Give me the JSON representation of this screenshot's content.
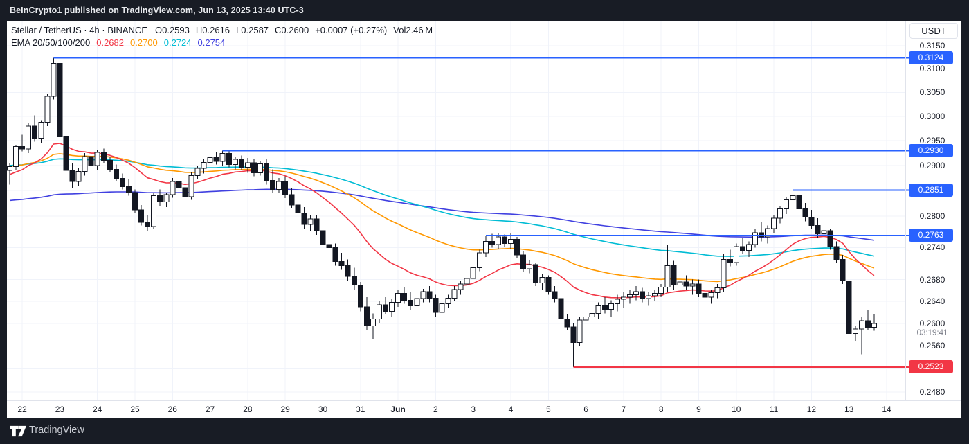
{
  "topbar": {
    "text": "BeInCrypto1 published on TradingView.com, Jun 13, 2025 13:40 UTC-3"
  },
  "header": {
    "title": "Stellar / TetherUS · 4h · BINANCE",
    "open": "O0.2593",
    "high": "H0.2616",
    "low": "L0.2587",
    "close": "C0.2600",
    "change": "+0.0007 (+0.27%)",
    "volume": "Vol2.46 M"
  },
  "axis": {
    "currency_button": "USDT",
    "countdown": "03:19:41"
  },
  "footer": {
    "brand": "TradingView"
  },
  "chart_data": {
    "type": "candlestick",
    "symbol": "Stellar / TetherUS",
    "interval": "4h",
    "exchange": "BINANCE",
    "last_bar": {
      "open": 0.2593,
      "high": 0.2616,
      "low": 0.2587,
      "close": 0.26,
      "change": 0.0007,
      "change_pct": 0.27,
      "volume": "2.46M"
    },
    "scale": "log",
    "y_range_visible": [
      0.2465,
      0.3205
    ],
    "x_map": {
      "x0": 4,
      "dx": 9.05
    },
    "y_map": {
      "p_ref": 0.315,
      "y_ref": 36,
      "k": 2090
    },
    "colors": {
      "grid": "#f0f3fa",
      "candle": "#131722",
      "up_fill": "#ffffff",
      "blue": "#2962FF",
      "red": "#F23645"
    },
    "ema": {
      "label": "EMA 20/50/100/200",
      "periods": [
        20,
        50,
        100,
        200
      ],
      "seeds": [
        0.288,
        0.2898,
        0.29,
        0.283
      ],
      "colors": [
        "#F23645",
        "#FF9800",
        "#00BCD4",
        "#4040E0"
      ],
      "values": [
        "0.2682",
        "0.2700",
        "0.2724",
        "0.2754"
      ]
    },
    "rays": [
      {
        "label": "0.3124",
        "price": 0.3124,
        "i": 7,
        "color": "#2962FF"
      },
      {
        "label": "0.2930",
        "price": 0.293,
        "i": 34,
        "color": "#2962FF"
      },
      {
        "label": "0.2851",
        "price": 0.2851,
        "i": 125,
        "color": "#2962FF"
      },
      {
        "label": "0.2763",
        "price": 0.2763,
        "i": 76,
        "color": "#2962FF"
      },
      {
        "label": "0.2523",
        "price": 0.2523,
        "i": 90,
        "color": "#F23645"
      }
    ],
    "countdown_price": 0.26,
    "y_ticks": [
      {
        "t": "0.3150",
        "p": 0.315
      },
      {
        "t": "0.3100",
        "p": 0.31
      },
      {
        "t": "0.3050",
        "p": 0.305
      },
      {
        "t": "0.3000",
        "p": 0.3
      },
      {
        "t": "0.2950",
        "p": 0.295
      },
      {
        "t": "0.2900",
        "p": 0.29
      },
      {
        "t": "0.2800",
        "p": 0.28
      },
      {
        "t": "0.2740",
        "p": 0.274
      },
      {
        "t": "0.2680",
        "p": 0.268
      },
      {
        "t": "0.2640",
        "p": 0.264
      },
      {
        "t": "0.2600",
        "p": 0.26
      },
      {
        "t": "0.2560",
        "p": 0.256
      },
      {
        "t": "0.2480",
        "p": 0.248
      }
    ],
    "grid_prices": [
      0.315,
      0.31,
      0.305,
      0.3,
      0.295,
      0.29,
      0.285,
      0.28,
      0.274,
      0.268,
      0.264,
      0.26,
      0.256,
      0.252,
      0.248
    ],
    "x_labels": [
      {
        "t": "22",
        "i": 2
      },
      {
        "t": "23",
        "i": 8
      },
      {
        "t": "24",
        "i": 14
      },
      {
        "t": "25",
        "i": 20
      },
      {
        "t": "26",
        "i": 26
      },
      {
        "t": "27",
        "i": 32
      },
      {
        "t": "28",
        "i": 38
      },
      {
        "t": "29",
        "i": 44
      },
      {
        "t": "30",
        "i": 50
      },
      {
        "t": "31",
        "i": 56
      },
      {
        "t": "Jun",
        "i": 62,
        "b": true
      },
      {
        "t": "2",
        "i": 68
      },
      {
        "t": "3",
        "i": 74
      },
      {
        "t": "4",
        "i": 80
      },
      {
        "t": "5",
        "i": 86
      },
      {
        "t": "6",
        "i": 92
      },
      {
        "t": "7",
        "i": 98
      },
      {
        "t": "8",
        "i": 104
      },
      {
        "t": "9",
        "i": 110
      },
      {
        "t": "10",
        "i": 116
      },
      {
        "t": "11",
        "i": 122
      },
      {
        "t": "12",
        "i": 128
      },
      {
        "t": "13",
        "i": 134
      },
      {
        "t": "14",
        "i": 140
      }
    ],
    "candles": [
      [
        0.289,
        0.2905,
        0.2862,
        0.2898
      ],
      [
        0.2898,
        0.2942,
        0.289,
        0.2938
      ],
      [
        0.2938,
        0.2962,
        0.2928,
        0.2933
      ],
      [
        0.2933,
        0.2986,
        0.2925,
        0.298
      ],
      [
        0.298,
        0.3002,
        0.2948,
        0.2955
      ],
      [
        0.2955,
        0.2992,
        0.2945,
        0.2988
      ],
      [
        0.2988,
        0.3048,
        0.298,
        0.3042
      ],
      [
        0.3042,
        0.3124,
        0.3035,
        0.3112
      ],
      [
        0.3112,
        0.312,
        0.295,
        0.2958
      ],
      [
        0.2958,
        0.2998,
        0.288,
        0.289
      ],
      [
        0.289,
        0.2905,
        0.2855,
        0.2868
      ],
      [
        0.2868,
        0.2895,
        0.286,
        0.2888
      ],
      [
        0.2888,
        0.2925,
        0.288,
        0.2918
      ],
      [
        0.2918,
        0.293,
        0.2895,
        0.29
      ],
      [
        0.29,
        0.2932,
        0.289,
        0.2926
      ],
      [
        0.2926,
        0.2934,
        0.2905,
        0.291
      ],
      [
        0.291,
        0.2918,
        0.2886,
        0.2892
      ],
      [
        0.2892,
        0.2902,
        0.2868,
        0.2874
      ],
      [
        0.2874,
        0.2884,
        0.2852,
        0.2858
      ],
      [
        0.2858,
        0.2872,
        0.284,
        0.2846
      ],
      [
        0.2846,
        0.2852,
        0.2806,
        0.2812
      ],
      [
        0.2812,
        0.2822,
        0.2782,
        0.2788
      ],
      [
        0.2788,
        0.2802,
        0.2772,
        0.278
      ],
      [
        0.278,
        0.2846,
        0.2776,
        0.284
      ],
      [
        0.284,
        0.2852,
        0.282,
        0.2828
      ],
      [
        0.2828,
        0.2846,
        0.2818,
        0.2842
      ],
      [
        0.2842,
        0.2875,
        0.2836,
        0.2868
      ],
      [
        0.2868,
        0.288,
        0.285,
        0.2856
      ],
      [
        0.2856,
        0.2862,
        0.2798,
        0.2838
      ],
      [
        0.2838,
        0.2886,
        0.2832,
        0.288
      ],
      [
        0.288,
        0.29,
        0.2872,
        0.2894
      ],
      [
        0.2894,
        0.2912,
        0.2884,
        0.2906
      ],
      [
        0.2906,
        0.2922,
        0.2898,
        0.2916
      ],
      [
        0.2916,
        0.2926,
        0.2902,
        0.2908
      ],
      [
        0.2908,
        0.293,
        0.29,
        0.2924
      ],
      [
        0.2924,
        0.2928,
        0.2896,
        0.2902
      ],
      [
        0.2902,
        0.2918,
        0.2892,
        0.2912
      ],
      [
        0.2912,
        0.292,
        0.289,
        0.2896
      ],
      [
        0.2896,
        0.2915,
        0.2885,
        0.2905
      ],
      [
        0.2905,
        0.2912,
        0.2878,
        0.2885
      ],
      [
        0.2885,
        0.2908,
        0.288,
        0.2903
      ],
      [
        0.2903,
        0.2912,
        0.2862,
        0.287
      ],
      [
        0.287,
        0.2892,
        0.2845,
        0.2852
      ],
      [
        0.2852,
        0.2875,
        0.2846,
        0.2868
      ],
      [
        0.2868,
        0.2878,
        0.2835,
        0.2842
      ],
      [
        0.2842,
        0.2856,
        0.2815,
        0.2822
      ],
      [
        0.2822,
        0.2838,
        0.2798,
        0.2806
      ],
      [
        0.2806,
        0.2818,
        0.2776,
        0.2784
      ],
      [
        0.2784,
        0.2802,
        0.2772,
        0.2795
      ],
      [
        0.2795,
        0.2803,
        0.2764,
        0.2772
      ],
      [
        0.2772,
        0.2782,
        0.2738,
        0.2746
      ],
      [
        0.2746,
        0.2762,
        0.2732,
        0.274
      ],
      [
        0.274,
        0.2748,
        0.2706,
        0.2714
      ],
      [
        0.2714,
        0.273,
        0.2698,
        0.2706
      ],
      [
        0.2706,
        0.2718,
        0.2678,
        0.2686
      ],
      [
        0.2686,
        0.2702,
        0.2662,
        0.267
      ],
      [
        0.267,
        0.2676,
        0.2622,
        0.263
      ],
      [
        0.263,
        0.2648,
        0.2588,
        0.2596
      ],
      [
        0.2596,
        0.2618,
        0.2572,
        0.2608
      ],
      [
        0.2608,
        0.264,
        0.26,
        0.2634
      ],
      [
        0.2634,
        0.2648,
        0.2616,
        0.2622
      ],
      [
        0.2622,
        0.2644,
        0.2612,
        0.2638
      ],
      [
        0.2638,
        0.2662,
        0.263,
        0.2655
      ],
      [
        0.2655,
        0.2666,
        0.2636,
        0.2642
      ],
      [
        0.2642,
        0.2658,
        0.2624,
        0.2632
      ],
      [
        0.2632,
        0.265,
        0.262,
        0.2645
      ],
      [
        0.2645,
        0.2663,
        0.2638,
        0.2658
      ],
      [
        0.2658,
        0.2668,
        0.2638,
        0.2646
      ],
      [
        0.2646,
        0.2652,
        0.2612,
        0.262
      ],
      [
        0.262,
        0.2642,
        0.2608,
        0.2636
      ],
      [
        0.2636,
        0.2652,
        0.2628,
        0.2646
      ],
      [
        0.2646,
        0.2668,
        0.264,
        0.2662
      ],
      [
        0.2662,
        0.2678,
        0.2652,
        0.2672
      ],
      [
        0.2672,
        0.2688,
        0.2662,
        0.2682
      ],
      [
        0.2682,
        0.2708,
        0.2676,
        0.2702
      ],
      [
        0.2702,
        0.2736,
        0.2696,
        0.273
      ],
      [
        0.273,
        0.2763,
        0.2722,
        0.2752
      ],
      [
        0.2752,
        0.2766,
        0.274,
        0.2746
      ],
      [
        0.2746,
        0.2768,
        0.2738,
        0.276
      ],
      [
        0.276,
        0.2765,
        0.2742,
        0.2748
      ],
      [
        0.2748,
        0.2768,
        0.2738,
        0.2756
      ],
      [
        0.2756,
        0.276,
        0.272,
        0.2726
      ],
      [
        0.2726,
        0.2734,
        0.2694,
        0.27
      ],
      [
        0.27,
        0.2716,
        0.2692,
        0.2708
      ],
      [
        0.2708,
        0.2712,
        0.2668,
        0.2674
      ],
      [
        0.2674,
        0.269,
        0.2662,
        0.2684
      ],
      [
        0.2684,
        0.2688,
        0.2652,
        0.2658
      ],
      [
        0.2658,
        0.2668,
        0.2638,
        0.2645
      ],
      [
        0.2645,
        0.265,
        0.26,
        0.2608
      ],
      [
        0.2608,
        0.2616,
        0.2588,
        0.2594
      ],
      [
        0.2594,
        0.26,
        0.2523,
        0.2566
      ],
      [
        0.2566,
        0.2612,
        0.256,
        0.2606
      ],
      [
        0.2606,
        0.2622,
        0.2592,
        0.2612
      ],
      [
        0.2612,
        0.2628,
        0.2598,
        0.2618
      ],
      [
        0.2618,
        0.2638,
        0.2608,
        0.2632
      ],
      [
        0.2632,
        0.2648,
        0.2618,
        0.2626
      ],
      [
        0.2626,
        0.2642,
        0.2612,
        0.2636
      ],
      [
        0.2636,
        0.2652,
        0.2622,
        0.2644
      ],
      [
        0.2644,
        0.2658,
        0.2628,
        0.2648
      ],
      [
        0.2648,
        0.2662,
        0.2636,
        0.2652
      ],
      [
        0.2652,
        0.2668,
        0.2642,
        0.2658
      ],
      [
        0.2658,
        0.2665,
        0.2638,
        0.2645
      ],
      [
        0.2645,
        0.2658,
        0.2632,
        0.265
      ],
      [
        0.265,
        0.2662,
        0.264,
        0.2655
      ],
      [
        0.2655,
        0.2672,
        0.2648,
        0.2666
      ],
      [
        0.2666,
        0.2745,
        0.2658,
        0.2706
      ],
      [
        0.2706,
        0.2715,
        0.2662,
        0.267
      ],
      [
        0.267,
        0.2684,
        0.2658,
        0.2676
      ],
      [
        0.2676,
        0.2688,
        0.2662,
        0.2668
      ],
      [
        0.2668,
        0.268,
        0.2652,
        0.2672
      ],
      [
        0.2672,
        0.268,
        0.2648,
        0.2655
      ],
      [
        0.2655,
        0.2668,
        0.2642,
        0.2648
      ],
      [
        0.2648,
        0.2662,
        0.2636,
        0.2656
      ],
      [
        0.2656,
        0.2672,
        0.2646,
        0.2665
      ],
      [
        0.2665,
        0.2728,
        0.2658,
        0.2718
      ],
      [
        0.2718,
        0.2736,
        0.2705,
        0.2712
      ],
      [
        0.2712,
        0.2748,
        0.2706,
        0.2742
      ],
      [
        0.2742,
        0.2758,
        0.2728,
        0.2735
      ],
      [
        0.2735,
        0.2752,
        0.2722,
        0.2746
      ],
      [
        0.2746,
        0.2775,
        0.274,
        0.2768
      ],
      [
        0.2768,
        0.2788,
        0.2752,
        0.276
      ],
      [
        0.276,
        0.2782,
        0.2748,
        0.2776
      ],
      [
        0.2776,
        0.2802,
        0.2768,
        0.2796
      ],
      [
        0.2796,
        0.282,
        0.2786,
        0.2814
      ],
      [
        0.2814,
        0.2838,
        0.2804,
        0.2832
      ],
      [
        0.2832,
        0.2851,
        0.2822,
        0.284
      ],
      [
        0.284,
        0.2846,
        0.2806,
        0.2814
      ],
      [
        0.2814,
        0.2826,
        0.279,
        0.2798
      ],
      [
        0.2798,
        0.2812,
        0.2776,
        0.2782
      ],
      [
        0.2782,
        0.2796,
        0.2758,
        0.2766
      ],
      [
        0.2766,
        0.2778,
        0.2748,
        0.2772
      ],
      [
        0.2772,
        0.2776,
        0.2736,
        0.2742
      ],
      [
        0.2742,
        0.2752,
        0.2712,
        0.2718
      ],
      [
        0.2718,
        0.2726,
        0.2672,
        0.2678
      ],
      [
        0.2678,
        0.2682,
        0.253,
        0.2582
      ],
      [
        0.2582,
        0.2596,
        0.2568,
        0.259
      ],
      [
        0.259,
        0.2612,
        0.2545,
        0.2605
      ],
      [
        0.2605,
        0.2625,
        0.2588,
        0.2593
      ],
      [
        0.2593,
        0.2616,
        0.2587,
        0.26
      ]
    ]
  }
}
